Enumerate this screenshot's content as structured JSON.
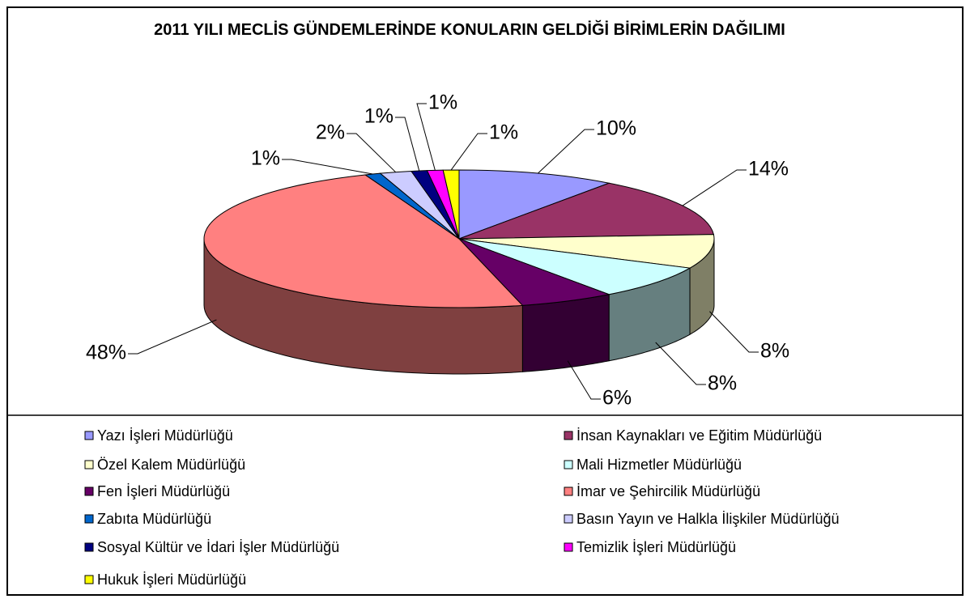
{
  "chart_data": {
    "type": "pie",
    "title": "2011 YILI MECLİS GÜNDEMLERİNDE KONULARIN GELDİĞİ BİRİMLERİN DAĞILIMI",
    "categories": [
      "Yazı İşleri Müdürlüğü",
      "İnsan Kaynakları ve Eğitim Müdürlüğü",
      "Özel Kalem Müdürlüğü",
      "Mali Hizmetler Müdürlüğü",
      "Fen İşleri Müdürlüğü",
      "İmar ve Şehircilik Müdürlüğü",
      "Zabıta Müdürlüğü",
      "Basın Yayın ve Halkla İlişkiler Müdürlüğü",
      "Sosyal Kültür ve İdari İşler Müdürlüğü",
      "Temizlik İşleri Müdürlüğü",
      "Hukuk İşleri Müdürlüğü"
    ],
    "values": [
      10,
      14,
      8,
      8,
      6,
      48,
      1,
      2,
      1,
      1,
      1
    ],
    "value_labels": [
      "10%",
      "14%",
      "8%",
      "8%",
      "6%",
      "48%",
      "1%",
      "2%",
      "1%",
      "1%",
      "1%"
    ],
    "colors": [
      "#9999ff",
      "#993366",
      "#ffffcc",
      "#ccffff",
      "#660066",
      "#ff8080",
      "#0066cc",
      "#ccccff",
      "#000080",
      "#ff00ff",
      "#ffff00"
    ],
    "legend": "bottom"
  }
}
